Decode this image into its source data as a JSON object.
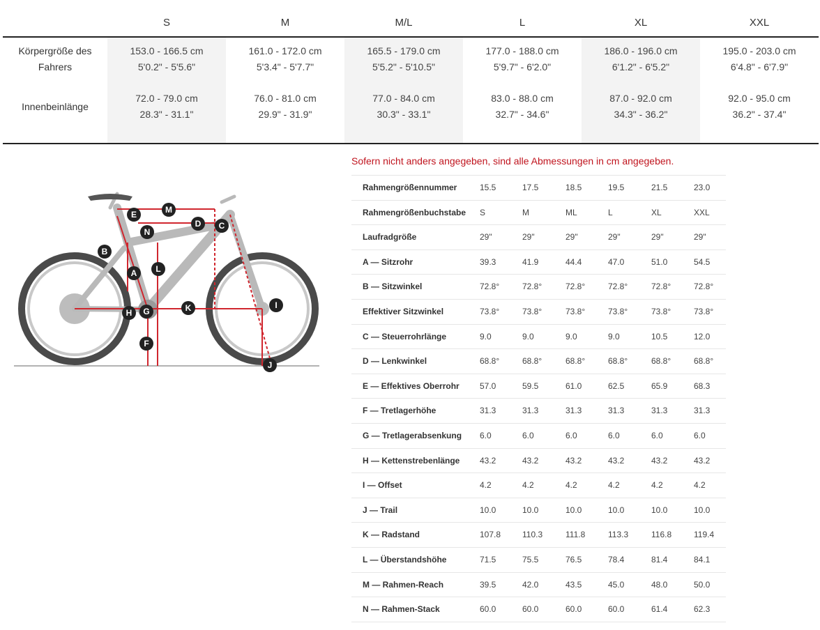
{
  "size_chart": {
    "sizes": [
      "S",
      "M",
      "M/L",
      "L",
      "XL",
      "XXL"
    ],
    "rows": [
      {
        "label_line1": "Körpergröße des",
        "label_line2": "Fahrers",
        "values": [
          {
            "cm": "153.0 - 166.5 cm",
            "ft": "5'0.2\" - 5'5.6\""
          },
          {
            "cm": "161.0 - 172.0 cm",
            "ft": "5'3.4\" - 5'7.7\""
          },
          {
            "cm": "165.5 - 179.0 cm",
            "ft": "5'5.2\" - 5'10.5\""
          },
          {
            "cm": "177.0 - 188.0 cm",
            "ft": "5'9.7\" - 6'2.0\""
          },
          {
            "cm": "186.0 - 196.0 cm",
            "ft": "6'1.2\" - 6'5.2\""
          },
          {
            "cm": "195.0 - 203.0 cm",
            "ft": "6'4.8\" - 6'7.9\""
          }
        ]
      },
      {
        "label_line1": "Innenbeinlänge",
        "label_line2": "",
        "values": [
          {
            "cm": "72.0 - 79.0 cm",
            "ft": "28.3\" - 31.1\""
          },
          {
            "cm": "76.0 - 81.0 cm",
            "ft": "29.9\" - 31.9\""
          },
          {
            "cm": "77.0 - 84.0 cm",
            "ft": "30.3\" - 33.1\""
          },
          {
            "cm": "83.0 - 88.0 cm",
            "ft": "32.7\" - 34.6\""
          },
          {
            "cm": "87.0 - 92.0 cm",
            "ft": "34.3\" - 36.2\""
          },
          {
            "cm": "92.0 - 95.0 cm",
            "ft": "36.2\" - 37.4\""
          }
        ]
      }
    ]
  },
  "diagram": {
    "labels": [
      "A",
      "B",
      "C",
      "D",
      "E",
      "F",
      "G",
      "H",
      "I",
      "J",
      "K",
      "L",
      "M",
      "N"
    ],
    "colors": {
      "frame": "#b9b9b9",
      "tire": "#4a4a4a",
      "measure": "#d0262e",
      "label_bg": "#222222"
    }
  },
  "geometry": {
    "note": "Sofern nicht anders angegeben, sind alle Abmessungen in cm angegeben.",
    "rows": [
      {
        "label": "Rahmengrößennummer",
        "values": [
          "15.5",
          "17.5",
          "18.5",
          "19.5",
          "21.5",
          "23.0"
        ]
      },
      {
        "label": "Rahmengrößenbuchstabe",
        "values": [
          "S",
          "M",
          "ML",
          "L",
          "XL",
          "XXL"
        ]
      },
      {
        "label": "Laufradgröße",
        "values": [
          "29\"",
          "29\"",
          "29\"",
          "29\"",
          "29\"",
          "29\""
        ]
      },
      {
        "label": "A — Sitzrohr",
        "values": [
          "39.3",
          "41.9",
          "44.4",
          "47.0",
          "51.0",
          "54.5"
        ]
      },
      {
        "label": "B — Sitzwinkel",
        "values": [
          "72.8°",
          "72.8°",
          "72.8°",
          "72.8°",
          "72.8°",
          "72.8°"
        ]
      },
      {
        "label": "Effektiver Sitzwinkel",
        "values": [
          "73.8°",
          "73.8°",
          "73.8°",
          "73.8°",
          "73.8°",
          "73.8°"
        ]
      },
      {
        "label": "C — Steuerrohrlänge",
        "values": [
          "9.0",
          "9.0",
          "9.0",
          "9.0",
          "10.5",
          "12.0"
        ]
      },
      {
        "label": "D — Lenkwinkel",
        "values": [
          "68.8°",
          "68.8°",
          "68.8°",
          "68.8°",
          "68.8°",
          "68.8°"
        ]
      },
      {
        "label": "E — Effektives Oberrohr",
        "values": [
          "57.0",
          "59.5",
          "61.0",
          "62.5",
          "65.9",
          "68.3"
        ]
      },
      {
        "label": "F — Tretlagerhöhe",
        "values": [
          "31.3",
          "31.3",
          "31.3",
          "31.3",
          "31.3",
          "31.3"
        ]
      },
      {
        "label": "G — Tretlagerabsenkung",
        "values": [
          "6.0",
          "6.0",
          "6.0",
          "6.0",
          "6.0",
          "6.0"
        ]
      },
      {
        "label": "H — Kettenstrebenlänge",
        "values": [
          "43.2",
          "43.2",
          "43.2",
          "43.2",
          "43.2",
          "43.2"
        ]
      },
      {
        "label": "I — Offset",
        "values": [
          "4.2",
          "4.2",
          "4.2",
          "4.2",
          "4.2",
          "4.2"
        ]
      },
      {
        "label": "J — Trail",
        "values": [
          "10.0",
          "10.0",
          "10.0",
          "10.0",
          "10.0",
          "10.0"
        ]
      },
      {
        "label": "K — Radstand",
        "values": [
          "107.8",
          "110.3",
          "111.8",
          "113.3",
          "116.8",
          "119.4"
        ]
      },
      {
        "label": "L — Überstandshöhe",
        "values": [
          "71.5",
          "75.5",
          "76.5",
          "78.4",
          "81.4",
          "84.1"
        ]
      },
      {
        "label": "M — Rahmen-Reach",
        "values": [
          "39.5",
          "42.0",
          "43.5",
          "45.0",
          "48.0",
          "50.0"
        ]
      },
      {
        "label": "N — Rahmen-Stack",
        "values": [
          "60.0",
          "60.0",
          "60.0",
          "60.0",
          "61.4",
          "62.3"
        ]
      }
    ]
  }
}
